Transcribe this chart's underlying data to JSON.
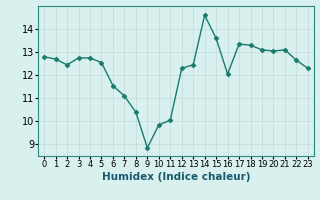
{
  "x": [
    0,
    1,
    2,
    3,
    4,
    5,
    6,
    7,
    8,
    9,
    10,
    11,
    12,
    13,
    14,
    15,
    16,
    17,
    18,
    19,
    20,
    21,
    22,
    23
  ],
  "y": [
    12.8,
    12.7,
    12.45,
    12.75,
    12.75,
    12.55,
    11.55,
    11.1,
    10.4,
    8.85,
    9.85,
    10.05,
    12.3,
    12.45,
    14.6,
    13.6,
    12.05,
    13.35,
    13.3,
    13.1,
    13.05,
    13.1,
    12.65,
    12.3
  ],
  "line_color": "#1a7a6e",
  "marker": "D",
  "markersize": 2.5,
  "linewidth": 1.0,
  "bg_color": "#d8f0ee",
  "grid_color": "#c8dedd",
  "xlabel": "Humidex (Indice chaleur)",
  "xlabel_fontsize": 7.5,
  "ylim": [
    8.5,
    15.0
  ],
  "xlim": [
    -0.5,
    23.5
  ],
  "yticks": [
    9,
    10,
    11,
    12,
    13,
    14
  ],
  "xticks": [
    0,
    1,
    2,
    3,
    4,
    5,
    6,
    7,
    8,
    9,
    10,
    11,
    12,
    13,
    14,
    15,
    16,
    17,
    18,
    19,
    20,
    21,
    22,
    23
  ],
  "xtick_fontsize": 6.0,
  "ytick_fontsize": 7.0
}
